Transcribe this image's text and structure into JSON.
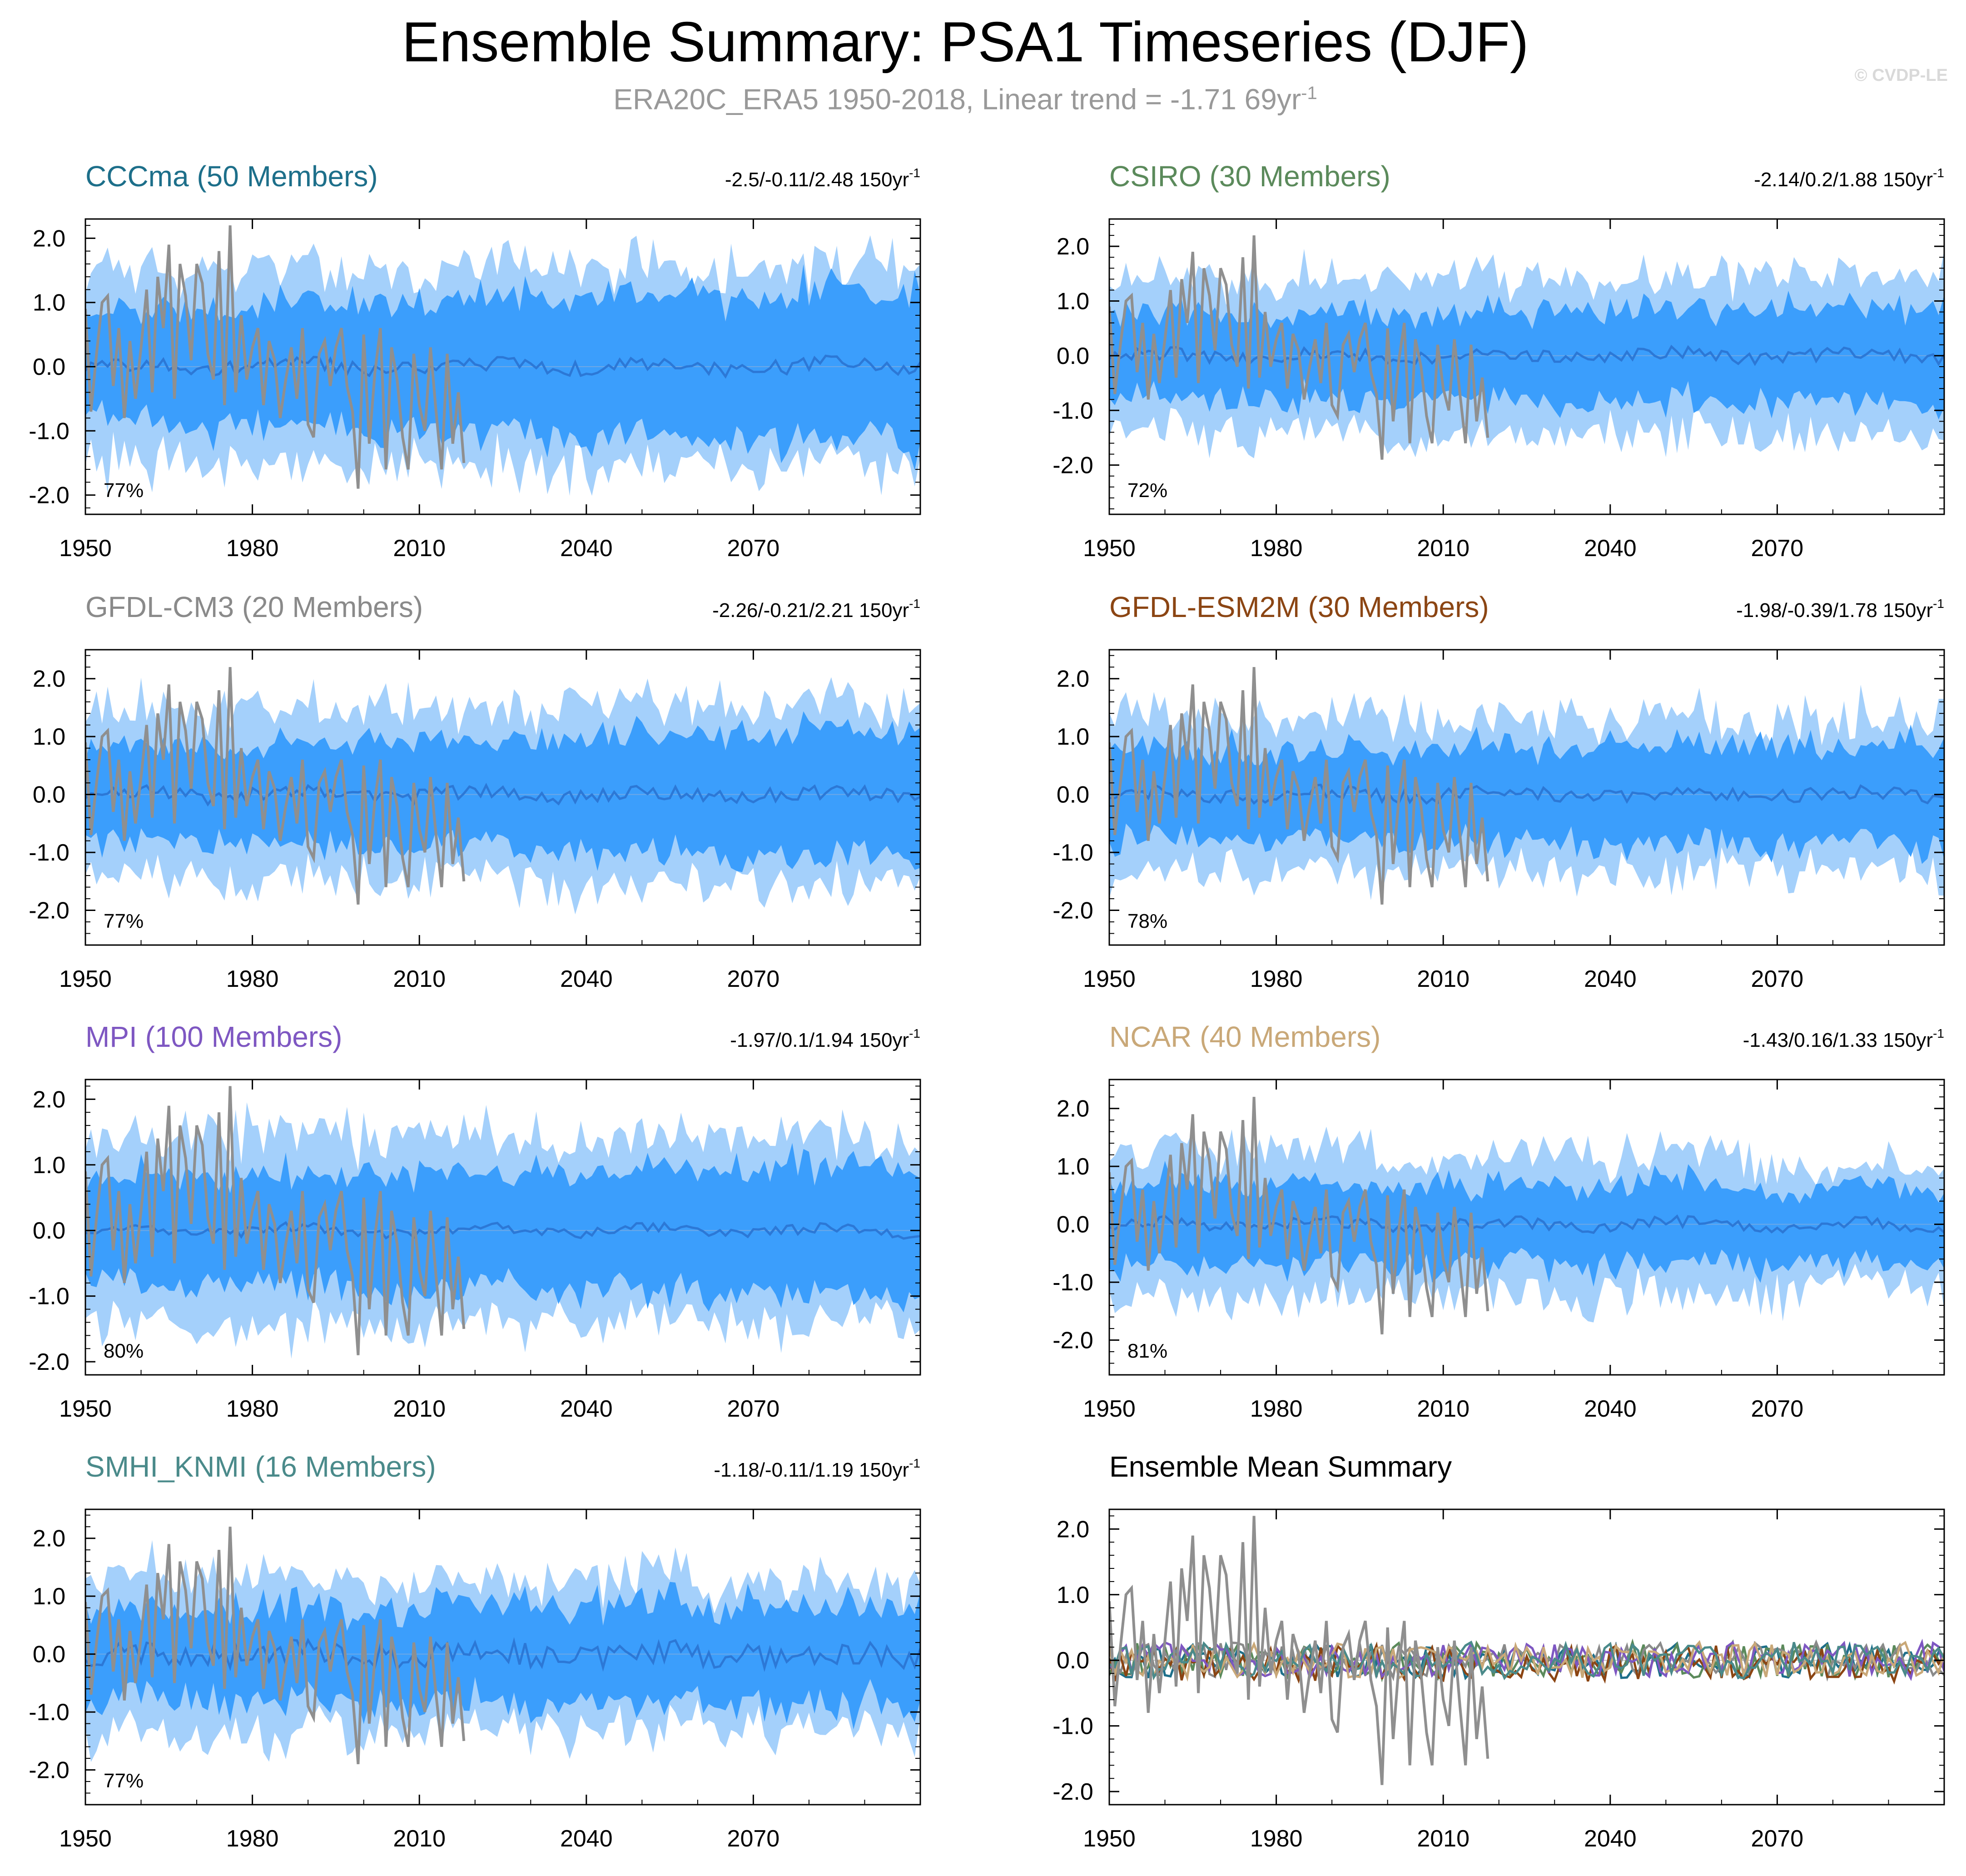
{
  "title": "Ensemble Summary: PSA1 Timeseries (DJF)",
  "subtitle": {
    "text": "ERA20C_ERA5 1950-2018, Linear trend = -1.71 69yr",
    "superscript": "-1"
  },
  "copyright": "© CVDP-LE",
  "colors": {
    "outer_band": "#a4d0fb",
    "inner_band": "#3b9efc",
    "ensemble_mean": "#2c78d6",
    "observations": "#8f8f8f"
  },
  "chart_data": [
    {
      "type": "area",
      "name": "CCCma (50 Members)",
      "title": "CCCma (50 Members)",
      "title_color": "#1d6f8a",
      "range_text": "-2.5/-0.11/2.48 150yr",
      "range_sup": "-1",
      "percent_text": "77%",
      "xlim": [
        1950,
        2100
      ],
      "ylim": [
        -2.3,
        2.3
      ],
      "x_ticks": [
        "1950",
        "1980",
        "2010",
        "2040",
        "2070"
      ],
      "y_ticks": [
        "2.0",
        "1.0",
        "0.0",
        "-1.0",
        "-2.0"
      ],
      "y_tick_values": [
        2,
        1,
        0,
        -1,
        -2
      ],
      "outer_spread": 1.5,
      "inner_spread": 0.85,
      "end_outer": 1.55,
      "end_inner": 1.2,
      "mean_amp": 0.12,
      "seed": 11
    },
    {
      "type": "area",
      "name": "CSIRO (30 Members)",
      "title": "CSIRO (30 Members)",
      "title_color": "#5b8a5b",
      "range_text": "-2.14/0.2/1.88 150yr",
      "range_sup": "-1",
      "percent_text": "72%",
      "xlim": [
        1950,
        2100
      ],
      "ylim": [
        -2.9,
        2.5
      ],
      "x_ticks": [
        "1950",
        "1980",
        "2010",
        "2040",
        "2070"
      ],
      "y_ticks": [
        "2.0",
        "1.0",
        "0.0",
        "-1.0",
        "-2.0"
      ],
      "y_tick_values": [
        2,
        1,
        0,
        -1,
        -2
      ],
      "outer_spread": 1.4,
      "inner_spread": 0.75,
      "end_outer": 1.45,
      "end_inner": 0.9,
      "mean_amp": 0.12,
      "seed": 23
    },
    {
      "type": "area",
      "name": "GFDL-CM3 (20 Members)",
      "title": "GFDL-CM3 (20 Members)",
      "title_color": "#8a8a8a",
      "range_text": "-2.26/-0.21/2.21 150yr",
      "range_sup": "-1",
      "percent_text": "77%",
      "xlim": [
        1950,
        2100
      ],
      "ylim": [
        -2.6,
        2.5
      ],
      "x_ticks": [
        "1950",
        "1980",
        "2010",
        "2040",
        "2070"
      ],
      "y_ticks": [
        "2.0",
        "1.0",
        "0.0",
        "-1.0",
        "-2.0"
      ],
      "y_tick_values": [
        2,
        1,
        0,
        -1,
        -2
      ],
      "outer_spread": 1.45,
      "inner_spread": 0.8,
      "end_outer": 1.55,
      "end_inner": 1.1,
      "mean_amp": 0.13,
      "seed": 37
    },
    {
      "type": "area",
      "name": "GFDL-ESM2M (30 Members)",
      "title": "GFDL-ESM2M (30 Members)",
      "title_color": "#8b4513",
      "range_text": "-1.98/-0.39/1.78 150yr",
      "range_sup": "-1",
      "percent_text": "78%",
      "xlim": [
        1950,
        2100
      ],
      "ylim": [
        -2.6,
        2.5
      ],
      "x_ticks": [
        "1950",
        "1980",
        "2010",
        "2040",
        "2070"
      ],
      "y_ticks": [
        "2.0",
        "1.0",
        "0.0",
        "-1.0",
        "-2.0"
      ],
      "y_tick_values": [
        2,
        1,
        0,
        -1,
        -2
      ],
      "outer_spread": 1.35,
      "inner_spread": 0.75,
      "end_outer": 1.3,
      "end_inner": 0.85,
      "mean_amp": 0.12,
      "seed": 41
    },
    {
      "type": "area",
      "name": "MPI (100 Members)",
      "title": "MPI (100 Members)",
      "title_color": "#7e57c2",
      "range_text": "-1.97/0.1/1.94 150yr",
      "range_sup": "-1",
      "percent_text": "80%",
      "xlim": [
        1950,
        2100
      ],
      "ylim": [
        -2.2,
        2.3
      ],
      "x_ticks": [
        "1950",
        "1980",
        "2010",
        "2040",
        "2070"
      ],
      "y_ticks": [
        "2.0",
        "1.0",
        "0.0",
        "-1.0",
        "-2.0"
      ],
      "y_tick_values": [
        2,
        1,
        0,
        -1,
        -2
      ],
      "outer_spread": 1.45,
      "inner_spread": 0.8,
      "end_outer": 1.4,
      "end_inner": 1.0,
      "mean_amp": 0.08,
      "seed": 53
    },
    {
      "type": "area",
      "name": "NCAR (40 Members)",
      "title": "NCAR (40 Members)",
      "title_color": "#c9a878",
      "range_text": "-1.43/0.16/1.33 150yr",
      "range_sup": "-1",
      "percent_text": "81%",
      "xlim": [
        1950,
        2100
      ],
      "ylim": [
        -2.6,
        2.5
      ],
      "x_ticks": [
        "1950",
        "1980",
        "2010",
        "2040",
        "2070"
      ],
      "y_ticks": [
        "2.0",
        "1.0",
        "0.0",
        "-1.0",
        "-2.0"
      ],
      "y_tick_values": [
        2,
        1,
        0,
        -1,
        -2
      ],
      "outer_spread": 1.35,
      "inner_spread": 0.72,
      "end_outer": 1.05,
      "end_inner": 0.65,
      "mean_amp": 0.1,
      "seed": 67
    },
    {
      "type": "area",
      "name": "SMHI_KNMI (16 Members)",
      "title": "SMHI_KNMI (16 Members)",
      "title_color": "#4a8a8a",
      "range_text": "-1.18/-0.11/1.19 150yr",
      "range_sup": "-1",
      "percent_text": "77%",
      "xlim": [
        1950,
        2100
      ],
      "ylim": [
        -2.6,
        2.5
      ],
      "x_ticks": [
        "1950",
        "1980",
        "2010",
        "2040",
        "2070"
      ],
      "y_ticks": [
        "2.0",
        "1.0",
        "0.0",
        "-1.0",
        "-2.0"
      ],
      "y_tick_values": [
        2,
        1,
        0,
        -1,
        -2
      ],
      "outer_spread": 1.4,
      "inner_spread": 0.8,
      "end_outer": 1.2,
      "end_inner": 0.85,
      "mean_amp": 0.22,
      "seed": 79
    },
    {
      "type": "line",
      "name": "Ensemble Mean Summary",
      "title": "Ensemble Mean Summary",
      "title_color": "#000000",
      "range_text": "",
      "range_sup": "",
      "percent_text": "",
      "xlim": [
        1950,
        2100
      ],
      "ylim": [
        -2.2,
        2.3
      ],
      "x_ticks": [
        "1950",
        "1980",
        "2010",
        "2040",
        "2070"
      ],
      "y_ticks": [
        "2.0",
        "1.0",
        "0.0",
        "-1.0",
        "-2.0"
      ],
      "y_tick_values": [
        2,
        1,
        0,
        -1,
        -2
      ],
      "series_colors": [
        "#1d6f8a",
        "#5b8a5b",
        "#8a8a8a",
        "#8b4513",
        "#7e57c2",
        "#c9a878",
        "#4a8a8a"
      ],
      "seed": 91
    }
  ],
  "observations": {
    "name": "ERA20C_ERA5",
    "x_start": 1950,
    "values": [
      0.9,
      -0.7,
      0.2,
      1.0,
      1.1,
      -0.3,
      0.6,
      -0.8,
      0.4,
      -0.5,
      0.3,
      1.2,
      -0.4,
      1.4,
      0.6,
      1.9,
      -0.5,
      1.6,
      1.1,
      0.1,
      1.6,
      1.3,
      0.2,
      -0.2,
      1.8,
      -0.6,
      2.2,
      -0.4,
      0.8,
      -0.2,
      0.3,
      0.6,
      -0.6,
      0.4,
      0.1,
      -0.8,
      -0.2,
      0.3,
      -0.5,
      0.6,
      -0.9,
      -1.1,
      0.2,
      0.4,
      -0.3,
      0.3,
      0.6,
      -0.3,
      -0.7,
      -1.9,
      0.5,
      -1.2,
      -0.1,
      0.6,
      -1.6,
      0.3,
      -0.2,
      -1.1,
      -1.6,
      0.2,
      -0.6,
      -1.0,
      0.3,
      -0.7,
      -1.6,
      0.2,
      -1.2,
      -0.4,
      -1.5
    ]
  }
}
